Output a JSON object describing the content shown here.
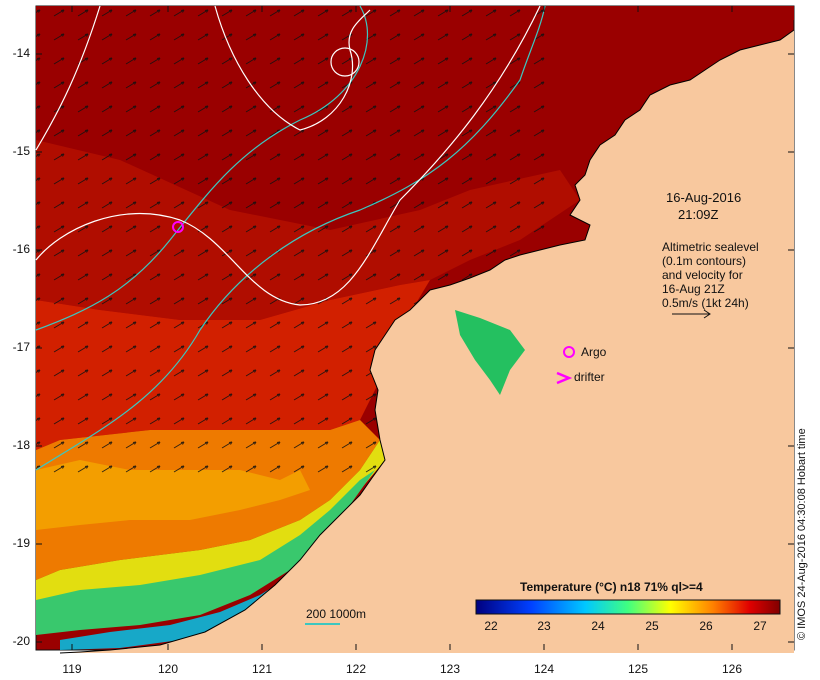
{
  "map": {
    "date": "16-Aug-2016",
    "time": "21:09Z",
    "lat_ticks": [
      "-14",
      "-15",
      "-16",
      "-17",
      "-18",
      "-19",
      "-20"
    ],
    "lon_ticks": [
      "119",
      "120",
      "121",
      "122",
      "123",
      "124",
      "125",
      "126"
    ],
    "altimetry_lines": [
      "Altimetric sealevel",
      "(0.1m contours)",
      "and velocity for",
      "16-Aug 21Z",
      "0.5m/s (1kt 24h)"
    ],
    "legend": {
      "argo": "Argo",
      "drifter": "drifter"
    },
    "depth_label": "200  1000m",
    "colorbar": {
      "title": "Temperature (°C) n18 71% ql>=4",
      "ticks": [
        "22",
        "23",
        "24",
        "25",
        "26",
        "27"
      ]
    },
    "credit": "© IMOS 24-Aug-2016 04:30:08 Hobart time",
    "colors": {
      "land": "#f8c89e",
      "warm": "#9a0000",
      "depth_contour": "#3cc7c0",
      "sealevel_contour": "#ffffff",
      "argo": "#ff00ff"
    }
  }
}
